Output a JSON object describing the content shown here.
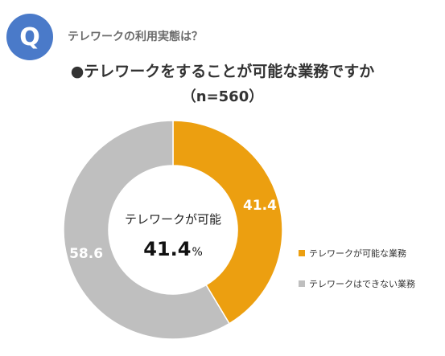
{
  "header": {
    "badge": "Q",
    "question": "テレワークの利用実態は？"
  },
  "chart_data": {
    "type": "pie",
    "title": "●テレワークをすることが可能な業務ですか",
    "subtitle": "（n=560）",
    "categories": [
      "テレワークが可能な業務",
      "テレワークはできない業務"
    ],
    "values": [
      41.4,
      58.6
    ],
    "colors": [
      "#ec9f10",
      "#bfbfbf"
    ],
    "data_labels": [
      "41.4",
      "58.6"
    ],
    "center_text": {
      "label": "テレワークが可能",
      "value": "41.4",
      "unit": "%"
    },
    "legend_position": "right"
  }
}
